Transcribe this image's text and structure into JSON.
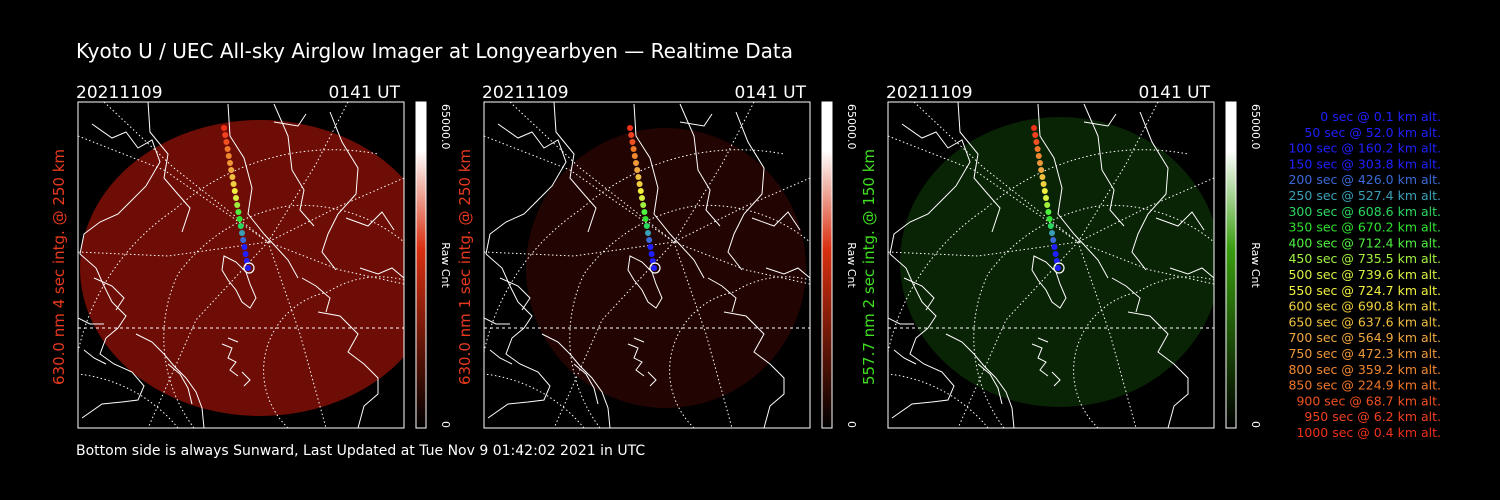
{
  "title": "Kyoto U / UEC All-sky Airglow Imager at Longyearbyen — Realtime Data",
  "footer": "Bottom side is always Sunward, Last Updated at Tue Nov  9 01:42:02 2021 in UTC",
  "panels": [
    {
      "date": "20211109",
      "time": "0141 UT",
      "side_label": "630.0 nm 4 sec intg. @ 250 km",
      "label_color": "#e83a1e",
      "colorbar_max": "65000.0",
      "colorbar_min": "0",
      "colorbar_label": "Raw Cnt",
      "colorbar_color": "#d83010",
      "image_color": "#8a1008",
      "image_level": 0.8
    },
    {
      "date": "20211109",
      "time": "0141 UT",
      "side_label": "630.0 nm 1 sec intg. @ 250 km",
      "label_color": "#e83a1e",
      "colorbar_max": "65000.0",
      "colorbar_min": "0",
      "colorbar_label": "Raw Cnt",
      "colorbar_color": "#d83010",
      "image_color": "#2a0504",
      "image_level": 0.8
    },
    {
      "date": "20211109",
      "time": "0141 UT",
      "side_label": "557.7 nm 2 sec intg. @ 150 km",
      "label_color": "#3fe01e",
      "colorbar_max": "65000.0",
      "colorbar_min": "0",
      "colorbar_label": "Raw Cnt",
      "colorbar_color": "#3a9e10",
      "image_color": "#0f3a08",
      "image_level": 0.6
    }
  ],
  "trajectory_legend": [
    {
      "label": "0 sec @   0.1 km alt.",
      "color": "#2020ff"
    },
    {
      "label": "50 sec @  52.0 km alt.",
      "color": "#2020ff"
    },
    {
      "label": "100 sec @ 160.2 km alt.",
      "color": "#2020ff"
    },
    {
      "label": "150 sec @ 303.8 km alt.",
      "color": "#2020ff"
    },
    {
      "label": "200 sec @ 426.0 km alt.",
      "color": "#3a6ad8"
    },
    {
      "label": "250 sec @ 527.4 km alt.",
      "color": "#3aa0b8"
    },
    {
      "label": "300 sec @ 608.6 km alt.",
      "color": "#2ad860"
    },
    {
      "label": "350 sec @ 670.2 km alt.",
      "color": "#30e030"
    },
    {
      "label": "400 sec @ 712.4 km alt.",
      "color": "#50f040"
    },
    {
      "label": "450 sec @ 735.5 km alt.",
      "color": "#a0f040"
    },
    {
      "label": "500 sec @ 739.6 km alt.",
      "color": "#d8f040"
    },
    {
      "label": "550 sec @ 724.7 km alt.",
      "color": "#f0f040"
    },
    {
      "label": "600 sec @ 690.8 km alt.",
      "color": "#f0d040"
    },
    {
      "label": "650 sec @ 637.6 km alt.",
      "color": "#f0c040"
    },
    {
      "label": "700 sec @ 564.9 km alt.",
      "color": "#f0a840"
    },
    {
      "label": "750 sec @ 472.3 km alt.",
      "color": "#f09838"
    },
    {
      "label": "800 sec @ 359.2 km alt.",
      "color": "#f08830"
    },
    {
      "label": "850 sec @ 224.9 km alt.",
      "color": "#f07828"
    },
    {
      "label": "900 sec @  68.7 km alt.",
      "color": "#f05020"
    },
    {
      "label": "950 sec @   6.2 km alt.",
      "color": "#f04020"
    },
    {
      "label": "1000 sec @   0.4 km alt.",
      "color": "#f03018"
    }
  ]
}
